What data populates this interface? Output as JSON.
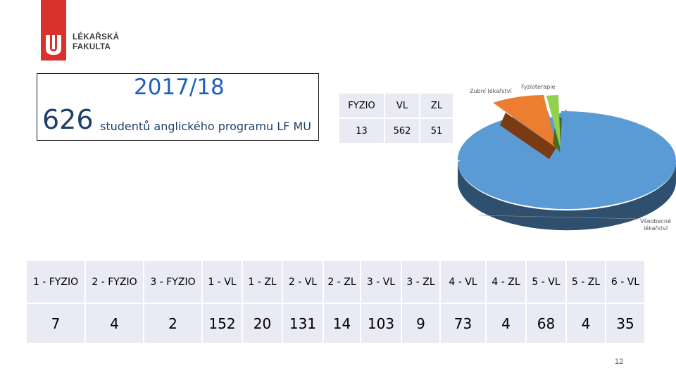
{
  "logo": {
    "line1": "LÉKAŘSKÁ",
    "line2": "FAKULTA",
    "brand_color": "#d9322b"
  },
  "summary": {
    "year": "2017/18",
    "total": "626",
    "label": "studentů anglického programu LF MU"
  },
  "small_table": {
    "headers": [
      "FYZIO",
      "VL",
      "ZL"
    ],
    "values": [
      "13",
      "562",
      "51"
    ]
  },
  "pie": {
    "labels": [
      "Zubní lékařství",
      "Fyzioterapie",
      "Všeobecné lékařství"
    ],
    "values": [
      51,
      13,
      562
    ],
    "colors": [
      "#ed7d31",
      "#92d050",
      "#5b9bd5"
    ]
  },
  "big_table": {
    "headers": [
      "1 - FYZIO",
      "2 - FYZIO",
      "3 - FYZIO",
      "1 - VL",
      "1 - ZL",
      "2 - VL",
      "2 - ZL",
      "3 - VL",
      "3 - ZL",
      "4 - VL",
      "4 - ZL",
      "5 - VL",
      "5 - ZL",
      "6 - VL"
    ],
    "values": [
      "7",
      "4",
      "2",
      "152",
      "20",
      "131",
      "14",
      "103",
      "9",
      "73",
      "4",
      "68",
      "4",
      "35"
    ]
  },
  "page_number": "12"
}
